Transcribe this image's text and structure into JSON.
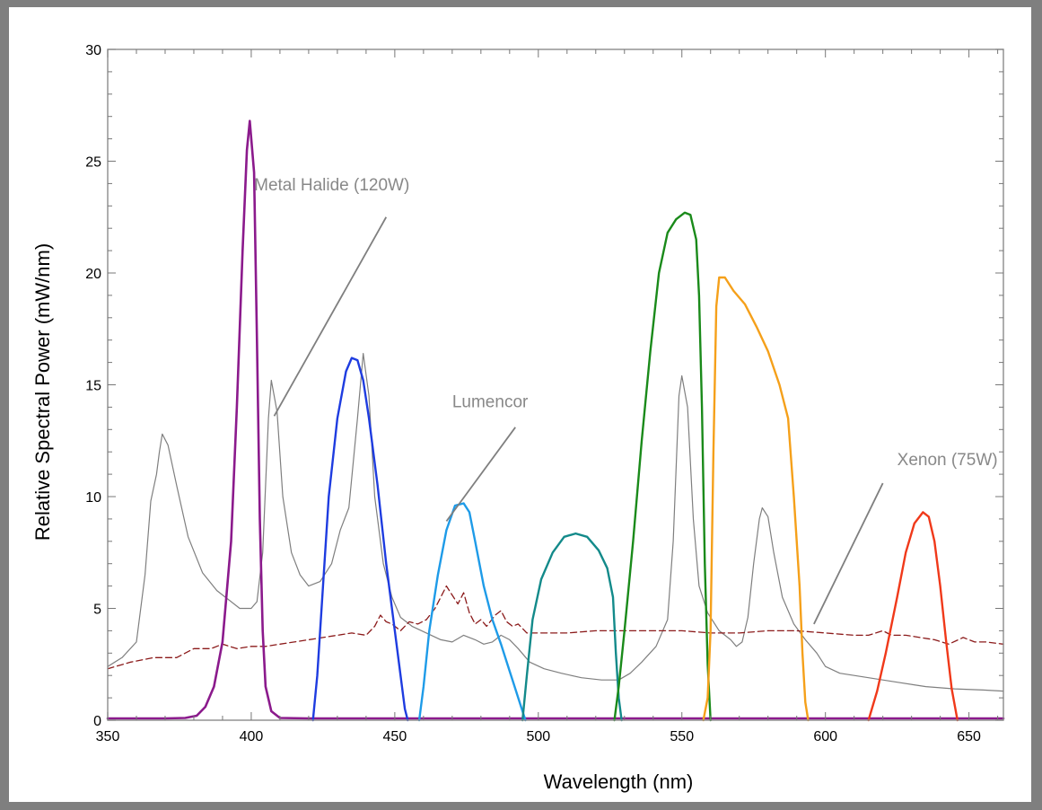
{
  "chart_data": {
    "type": "line",
    "xlabel": "Wavelength (nm)",
    "ylabel": "Relative Spectral Power (mW/nm)",
    "xlim": [
      350,
      662
    ],
    "ylim": [
      0,
      30
    ],
    "x_ticks": [
      350,
      400,
      450,
      500,
      550,
      600,
      650
    ],
    "y_ticks": [
      0,
      5,
      10,
      15,
      20,
      25,
      30
    ],
    "grid": false,
    "annotations": [
      {
        "text": "Metal Halide (120W)",
        "at": [
          401,
          23.7
        ],
        "arrow_from": [
          447,
          22.5
        ],
        "arrow_to": [
          408,
          13.6
        ]
      },
      {
        "text": "Lumencor",
        "at": [
          470,
          14.0
        ],
        "arrow_from": [
          492,
          13.1
        ],
        "arrow_to": [
          468,
          8.9
        ]
      },
      {
        "text": "Xenon (75W)",
        "at": [
          625,
          11.4
        ],
        "arrow_from": [
          620,
          10.6
        ],
        "arrow_to": [
          596,
          4.3
        ]
      }
    ],
    "series": [
      {
        "color": "#7f7f7f",
        "width": 1.2,
        "dash": "",
        "points": [
          [
            350,
            2.4
          ],
          [
            355,
            2.8
          ],
          [
            360,
            3.5
          ],
          [
            363,
            6.5
          ],
          [
            365,
            9.8
          ],
          [
            367,
            11
          ],
          [
            368,
            12
          ],
          [
            369,
            12.8
          ],
          [
            371,
            12.3
          ],
          [
            374,
            10.5
          ],
          [
            378,
            8.2
          ],
          [
            383,
            6.6
          ],
          [
            388,
            5.8
          ],
          [
            392,
            5.4
          ],
          [
            396,
            5.0
          ],
          [
            400,
            5.0
          ],
          [
            402,
            5.3
          ],
          [
            404,
            7.5
          ],
          [
            406,
            13.5
          ],
          [
            407,
            15.2
          ],
          [
            409,
            13.8
          ],
          [
            411,
            10
          ],
          [
            414,
            7.5
          ],
          [
            417,
            6.5
          ],
          [
            420,
            6.0
          ],
          [
            424,
            6.2
          ],
          [
            428,
            7.0
          ],
          [
            431,
            8.5
          ],
          [
            434,
            9.5
          ],
          [
            437,
            13.5
          ],
          [
            439,
            16.4
          ],
          [
            441,
            14.5
          ],
          [
            443,
            10
          ],
          [
            446,
            7.0
          ],
          [
            449,
            5.5
          ],
          [
            452,
            4.6
          ],
          [
            456,
            4.2
          ],
          [
            461,
            3.9
          ],
          [
            466,
            3.6
          ],
          [
            470,
            3.5
          ],
          [
            474,
            3.8
          ],
          [
            478,
            3.6
          ],
          [
            481,
            3.4
          ],
          [
            484,
            3.5
          ],
          [
            487,
            3.8
          ],
          [
            490,
            3.6
          ],
          [
            493,
            3.2
          ],
          [
            497,
            2.6
          ],
          [
            502,
            2.3
          ],
          [
            508,
            2.1
          ],
          [
            515,
            1.9
          ],
          [
            522,
            1.8
          ],
          [
            528,
            1.8
          ],
          [
            532,
            2.1
          ],
          [
            536,
            2.6
          ],
          [
            541,
            3.3
          ],
          [
            545,
            4.5
          ],
          [
            547,
            8
          ],
          [
            549,
            14.5
          ],
          [
            550,
            15.4
          ],
          [
            552,
            14
          ],
          [
            554,
            9
          ],
          [
            556,
            6
          ],
          [
            559,
            4.8
          ],
          [
            563,
            4.0
          ],
          [
            567,
            3.6
          ],
          [
            569,
            3.3
          ],
          [
            571,
            3.5
          ],
          [
            573,
            4.6
          ],
          [
            575,
            7
          ],
          [
            577,
            9
          ],
          [
            578,
            9.5
          ],
          [
            580,
            9.1
          ],
          [
            582,
            7.5
          ],
          [
            585,
            5.5
          ],
          [
            589,
            4.3
          ],
          [
            593,
            3.6
          ],
          [
            597,
            3.0
          ],
          [
            600,
            2.4
          ],
          [
            605,
            2.1
          ],
          [
            615,
            1.9
          ],
          [
            625,
            1.7
          ],
          [
            635,
            1.5
          ],
          [
            645,
            1.4
          ],
          [
            655,
            1.35
          ],
          [
            662,
            1.3
          ]
        ]
      },
      {
        "color": "#8b1a1a",
        "width": 1.3,
        "dash": "7,4",
        "points": [
          [
            350,
            2.3
          ],
          [
            358,
            2.6
          ],
          [
            366,
            2.8
          ],
          [
            374,
            2.8
          ],
          [
            380,
            3.2
          ],
          [
            386,
            3.2
          ],
          [
            390,
            3.4
          ],
          [
            395,
            3.2
          ],
          [
            400,
            3.3
          ],
          [
            405,
            3.3
          ],
          [
            410,
            3.4
          ],
          [
            415,
            3.5
          ],
          [
            420,
            3.6
          ],
          [
            425,
            3.7
          ],
          [
            430,
            3.8
          ],
          [
            435,
            3.9
          ],
          [
            440,
            3.8
          ],
          [
            443,
            4.2
          ],
          [
            445,
            4.7
          ],
          [
            447,
            4.4
          ],
          [
            449,
            4.3
          ],
          [
            452,
            4.0
          ],
          [
            455,
            4.4
          ],
          [
            458,
            4.3
          ],
          [
            461,
            4.5
          ],
          [
            464,
            5.0
          ],
          [
            466,
            5.5
          ],
          [
            468,
            6.0
          ],
          [
            470,
            5.6
          ],
          [
            472,
            5.2
          ],
          [
            474,
            5.7
          ],
          [
            476,
            4.8
          ],
          [
            478,
            4.3
          ],
          [
            480,
            4.5
          ],
          [
            482,
            4.2
          ],
          [
            485,
            4.7
          ],
          [
            487,
            4.9
          ],
          [
            489,
            4.4
          ],
          [
            491,
            4.2
          ],
          [
            493,
            4.3
          ],
          [
            496,
            3.9
          ],
          [
            500,
            3.9
          ],
          [
            510,
            3.9
          ],
          [
            520,
            4.0
          ],
          [
            530,
            4.0
          ],
          [
            540,
            4.0
          ],
          [
            550,
            4.0
          ],
          [
            560,
            3.9
          ],
          [
            570,
            3.9
          ],
          [
            580,
            4.0
          ],
          [
            590,
            4.0
          ],
          [
            600,
            3.9
          ],
          [
            610,
            3.8
          ],
          [
            615,
            3.8
          ],
          [
            620,
            4.0
          ],
          [
            623,
            3.8
          ],
          [
            628,
            3.8
          ],
          [
            633,
            3.7
          ],
          [
            638,
            3.6
          ],
          [
            643,
            3.4
          ],
          [
            648,
            3.7
          ],
          [
            652,
            3.5
          ],
          [
            656,
            3.5
          ],
          [
            662,
            3.4
          ]
        ]
      },
      {
        "color": "#8b1a8c",
        "width": 2.6,
        "dash": "",
        "points": [
          [
            350,
            0.08
          ],
          [
            370,
            0.08
          ],
          [
            377,
            0.1
          ],
          [
            381,
            0.2
          ],
          [
            384,
            0.6
          ],
          [
            387,
            1.5
          ],
          [
            390,
            3.5
          ],
          [
            393,
            8
          ],
          [
            395,
            14
          ],
          [
            397,
            21
          ],
          [
            398.5,
            25.5
          ],
          [
            399.5,
            26.8
          ],
          [
            401,
            24.5
          ],
          [
            402,
            17
          ],
          [
            403,
            9
          ],
          [
            404,
            4
          ],
          [
            405,
            1.5
          ],
          [
            407,
            0.4
          ],
          [
            410,
            0.1
          ],
          [
            420,
            0.08
          ],
          [
            662,
            0.08
          ]
        ]
      },
      {
        "color": "#1e3ce0",
        "width": 2.4,
        "dash": "",
        "points": [
          [
            421.5,
            0
          ],
          [
            423,
            2
          ],
          [
            425,
            6
          ],
          [
            427,
            10
          ],
          [
            430,
            13.5
          ],
          [
            433,
            15.6
          ],
          [
            435,
            16.2
          ],
          [
            437,
            16.1
          ],
          [
            439,
            15.2
          ],
          [
            441,
            13.5
          ],
          [
            444,
            10.5
          ],
          [
            447,
            7
          ],
          [
            450,
            4
          ],
          [
            452,
            2
          ],
          [
            453.5,
            0.5
          ],
          [
            454.5,
            0
          ]
        ]
      },
      {
        "color": "#1e9be8",
        "width": 2.4,
        "dash": "",
        "points": [
          [
            458.5,
            0
          ],
          [
            460,
            1.5
          ],
          [
            462,
            4
          ],
          [
            465,
            6.5
          ],
          [
            468,
            8.5
          ],
          [
            471,
            9.6
          ],
          [
            474,
            9.7
          ],
          [
            476,
            9.3
          ],
          [
            478,
            8.0
          ],
          [
            481,
            6.0
          ],
          [
            484,
            4.5
          ],
          [
            487,
            3.4
          ],
          [
            490,
            2.2
          ],
          [
            492,
            1.4
          ],
          [
            494,
            0.6
          ],
          [
            495.5,
            0
          ]
        ]
      },
      {
        "color": "#138a8a",
        "width": 2.4,
        "dash": "",
        "points": [
          [
            494.5,
            0
          ],
          [
            496,
            2
          ],
          [
            498,
            4.5
          ],
          [
            501,
            6.3
          ],
          [
            505,
            7.5
          ],
          [
            509,
            8.2
          ],
          [
            513,
            8.35
          ],
          [
            517,
            8.2
          ],
          [
            521,
            7.6
          ],
          [
            524,
            6.8
          ],
          [
            526,
            5.5
          ],
          [
            527,
            3.0
          ],
          [
            528,
            1.0
          ],
          [
            529,
            0
          ]
        ]
      },
      {
        "color": "#1a8a1a",
        "width": 2.4,
        "dash": "",
        "points": [
          [
            526.5,
            0
          ],
          [
            528,
            1.5
          ],
          [
            530,
            4
          ],
          [
            533,
            8
          ],
          [
            536,
            12.5
          ],
          [
            539,
            16.5
          ],
          [
            542,
            20
          ],
          [
            545,
            21.8
          ],
          [
            548,
            22.4
          ],
          [
            551,
            22.7
          ],
          [
            553,
            22.6
          ],
          [
            555,
            21.5
          ],
          [
            556,
            19
          ],
          [
            557,
            14
          ],
          [
            558,
            7
          ],
          [
            559,
            2.5
          ],
          [
            560,
            0
          ]
        ]
      },
      {
        "color": "#f5a01a",
        "width": 2.4,
        "dash": "",
        "points": [
          [
            557.5,
            0
          ],
          [
            559,
            1
          ],
          [
            560,
            4
          ],
          [
            561,
            12
          ],
          [
            562,
            18.5
          ],
          [
            563,
            19.8
          ],
          [
            565,
            19.8
          ],
          [
            568,
            19.2
          ],
          [
            572,
            18.6
          ],
          [
            576,
            17.6
          ],
          [
            580,
            16.5
          ],
          [
            584,
            15.0
          ],
          [
            587,
            13.5
          ],
          [
            589,
            10
          ],
          [
            591,
            6
          ],
          [
            592,
            3
          ],
          [
            593,
            0.8
          ],
          [
            594,
            0
          ]
        ]
      },
      {
        "color": "#f0391a",
        "width": 2.4,
        "dash": "",
        "points": [
          [
            615,
            0
          ],
          [
            618,
            1.3
          ],
          [
            621,
            3
          ],
          [
            625,
            5.5
          ],
          [
            628,
            7.5
          ],
          [
            631,
            8.8
          ],
          [
            634,
            9.3
          ],
          [
            636,
            9.1
          ],
          [
            638,
            8.0
          ],
          [
            640,
            6.0
          ],
          [
            642,
            3.6
          ],
          [
            644,
            1.4
          ],
          [
            646,
            0
          ]
        ]
      }
    ]
  }
}
